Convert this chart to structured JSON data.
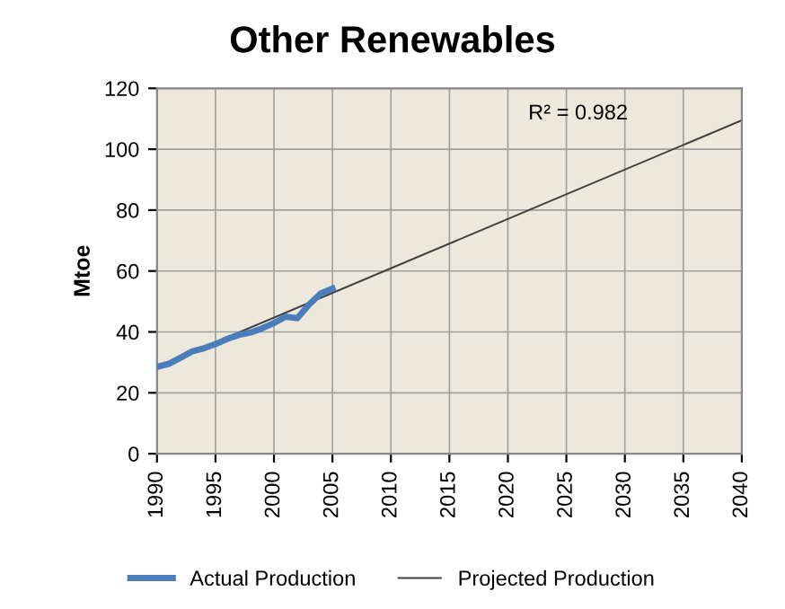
{
  "chart_data": {
    "type": "line",
    "title": "Other Renewables",
    "ylabel": "Mtoe",
    "series": [
      {
        "name": "Actual Production",
        "color": "#4a7ebb",
        "x": [
          1990,
          1991,
          1992,
          1993,
          1994,
          1995,
          1996,
          1997,
          1998,
          1999,
          2000,
          2001,
          2002,
          2003,
          2004,
          2005
        ],
        "values": [
          28.5,
          29.5,
          31.5,
          33.6,
          34.6,
          36,
          37.7,
          39,
          39.8,
          41.2,
          42.9,
          45,
          44.5,
          49,
          52.6,
          54.2
        ]
      },
      {
        "name": "Projected Production",
        "color": "#404040",
        "x": [
          1990,
          2040
        ],
        "values": [
          28.5,
          109.5
        ]
      }
    ],
    "xlim": [
      1990,
      2040
    ],
    "xticks": [
      1990,
      1995,
      2000,
      2005,
      2010,
      2015,
      2020,
      2025,
      2030,
      2035,
      2040
    ],
    "ylim": [
      0,
      120
    ],
    "yticks": [
      0,
      20,
      40,
      60,
      80,
      100,
      120
    ],
    "annotations": [
      "R² = 0.982"
    ],
    "grid": true,
    "legend": "bottom"
  }
}
